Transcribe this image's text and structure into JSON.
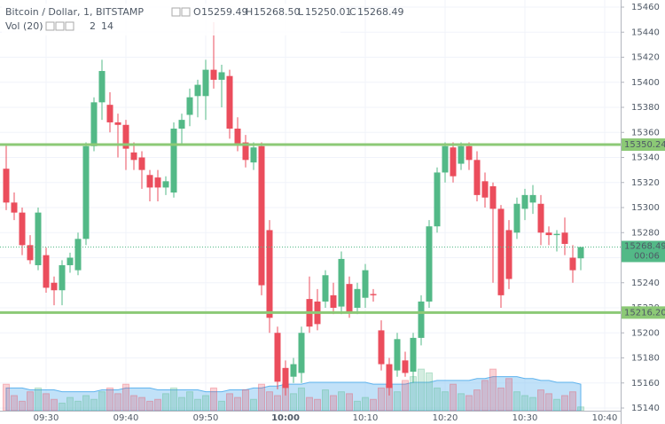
{
  "chart_data": {
    "type": "candlestick",
    "title": "Bitcoin / Dollar, 1, BITSTAMP",
    "ohlc_labels": [
      "O",
      "H",
      "L",
      "C"
    ],
    "last_high_label": "15268.50",
    "volume_label": "Vol (20)",
    "countdown": "00:06",
    "categories": [
      null,
      null,
      null,
      null,
      null,
      "09:30",
      null,
      null,
      null,
      null,
      null,
      null,
      null,
      null,
      null,
      "09:40",
      null,
      null,
      null,
      null,
      null,
      null,
      null,
      null,
      null,
      "09:50",
      null,
      null,
      null,
      null,
      null,
      null,
      null,
      null,
      null,
      "10:00",
      null,
      null,
      null,
      null,
      null,
      null,
      null,
      null,
      null,
      "10:10",
      null,
      null,
      null,
      null,
      null,
      null,
      null,
      null,
      null,
      "10:20",
      null,
      null,
      null,
      null,
      null,
      null,
      null,
      null,
      null,
      "10:30",
      null,
      null,
      null,
      null,
      null,
      null,
      null,
      null,
      null,
      "10:40"
    ],
    "bold_category": "10:00",
    "open": [
      15331,
      15304,
      15296,
      15270,
      15254,
      15262,
      15240,
      15234,
      15254,
      15250,
      15275,
      15349,
      15384,
      15382,
      15368,
      15366,
      15344,
      15340,
      15326,
      15324,
      15316,
      15312,
      15363,
      15374,
      15389,
      15389,
      15410,
      15402,
      15405,
      15363,
      15352,
      15336,
      15349,
      15282,
      15200,
      15172,
      15165,
      15168,
      15227,
      15225,
      15225,
      15230,
      15221,
      15239,
      15220,
      15228,
      15231,
      15202,
      15175,
      15170,
      15178,
      15169,
      15196,
      15225,
      15285,
      15328,
      15348,
      15335,
      15349,
      15338,
      15321,
      15317,
      15299,
      15282,
      15280,
      15299,
      15304,
      15303,
      15280,
      15278,
      15280,
      15260,
      15259.49,
      null,
      null,
      null
    ],
    "high": [
      15350,
      15312,
      15300,
      15278,
      15300,
      15268,
      15245,
      15258,
      15264,
      15280,
      15352,
      15388,
      15418,
      15392,
      15375,
      15370,
      15352,
      15345,
      15330,
      15330,
      15325,
      15368,
      15375,
      15395,
      15402,
      15418,
      15448,
      15414,
      15410,
      15372,
      15358,
      15352,
      15352,
      15290,
      15205,
      15178,
      15180,
      15205,
      15245,
      15235,
      15250,
      15240,
      15265,
      15245,
      15240,
      15255,
      15235,
      15210,
      15180,
      15200,
      15185,
      15200,
      15230,
      15290,
      15332,
      15352,
      15352,
      15352,
      15352,
      15345,
      15328,
      15320,
      15302,
      15290,
      15308,
      15315,
      15318,
      15310,
      15285,
      15282,
      15292,
      15270,
      15268.5,
      null,
      null,
      null
    ],
    "low": [
      15298,
      15290,
      15262,
      15255,
      15250,
      15232,
      15222,
      15222,
      15248,
      15246,
      15270,
      15345,
      15370,
      15360,
      15340,
      15330,
      15330,
      15315,
      15305,
      15305,
      15310,
      15308,
      15350,
      15365,
      15372,
      15370,
      15395,
      15380,
      15355,
      15345,
      15332,
      15330,
      15230,
      15200,
      15155,
      15150,
      15160,
      15160,
      15200,
      15202,
      15220,
      15215,
      15215,
      15212,
      15215,
      15220,
      15225,
      15170,
      15150,
      15165,
      15165,
      15160,
      15190,
      15220,
      15280,
      15320,
      15320,
      15330,
      15330,
      15305,
      15300,
      15240,
      15220,
      15235,
      15275,
      15290,
      15295,
      15270,
      15270,
      15265,
      15262,
      15240,
      15250.01,
      null,
      null,
      null
    ],
    "close": [
      15304,
      15296,
      15270,
      15258,
      15296,
      15236,
      15234,
      15254,
      15260,
      15275,
      15349,
      15384,
      15409,
      15368,
      15366,
      15347,
      15338,
      15330,
      15316,
      15316,
      15321,
      15363,
      15370,
      15388,
      15398,
      15410,
      15402,
      15408,
      15363,
      15350,
      15338,
      15348,
      15238,
      15212,
      15161,
      15156,
      15175,
      15200,
      15205,
      15207,
      15246,
      15220,
      15259,
      15216,
      15235,
      15250,
      15230,
      15175,
      15156,
      15195,
      15168,
      15196,
      15225,
      15285,
      15328,
      15349,
      15325,
      15349,
      15338,
      15310,
      15308,
      15299,
      15230,
      15243,
      15303,
      15310,
      15310,
      15280,
      15278,
      15279,
      15271,
      15250,
      15268.49,
      null,
      null,
      null
    ],
    "volume": [
      14,
      8,
      5,
      10,
      12,
      9,
      6,
      4,
      7,
      5,
      8,
      6,
      10,
      12,
      9,
      14,
      8,
      7,
      5,
      6,
      9,
      12,
      7,
      10,
      6,
      8,
      12,
      5,
      9,
      7,
      11,
      6,
      14,
      10,
      8,
      14,
      9,
      12,
      7,
      6,
      11,
      8,
      10,
      9,
      5,
      7,
      6,
      12,
      14,
      10,
      16,
      18,
      22,
      20,
      12,
      10,
      14,
      9,
      8,
      11,
      16,
      22,
      12,
      17,
      10,
      8,
      7,
      11,
      9,
      6,
      8,
      10,
      2,
      null,
      null,
      null
    ],
    "volume_ma": [
      12,
      12,
      12,
      11,
      11,
      11,
      11,
      10,
      10,
      10,
      10,
      10,
      11,
      11,
      11,
      12,
      12,
      12,
      12,
      11,
      11,
      11,
      11,
      11,
      11,
      10,
      10,
      10,
      11,
      11,
      11,
      12,
      12,
      13,
      13,
      14,
      14,
      14,
      15,
      15,
      15,
      15,
      15,
      15,
      15,
      15,
      14,
      14,
      14,
      14,
      14,
      15,
      15,
      15,
      16,
      16,
      16,
      16,
      16,
      17,
      17,
      18,
      18,
      18,
      18,
      17,
      17,
      16,
      16,
      15,
      15,
      15,
      14,
      null,
      null,
      null
    ],
    "vlim": [
      0,
      30
    ],
    "up_color": "#53b987",
    "down_color": "#eb4d5c",
    "ma_color": "#8ec9f2",
    "level_color": "#8cc976",
    "levels": [
      15350.24,
      {
        "value": 15216.2,
        "label": "15216.20"
      }
    ],
    "ylim": [
      15140,
      15460
    ],
    "yticks": [
      15140,
      15160,
      15180,
      15200,
      15220,
      15240,
      15260,
      15280,
      15300,
      15320,
      15340,
      15360,
      15380,
      15400,
      15420,
      15440,
      15460
    ],
    "grid": true
  }
}
